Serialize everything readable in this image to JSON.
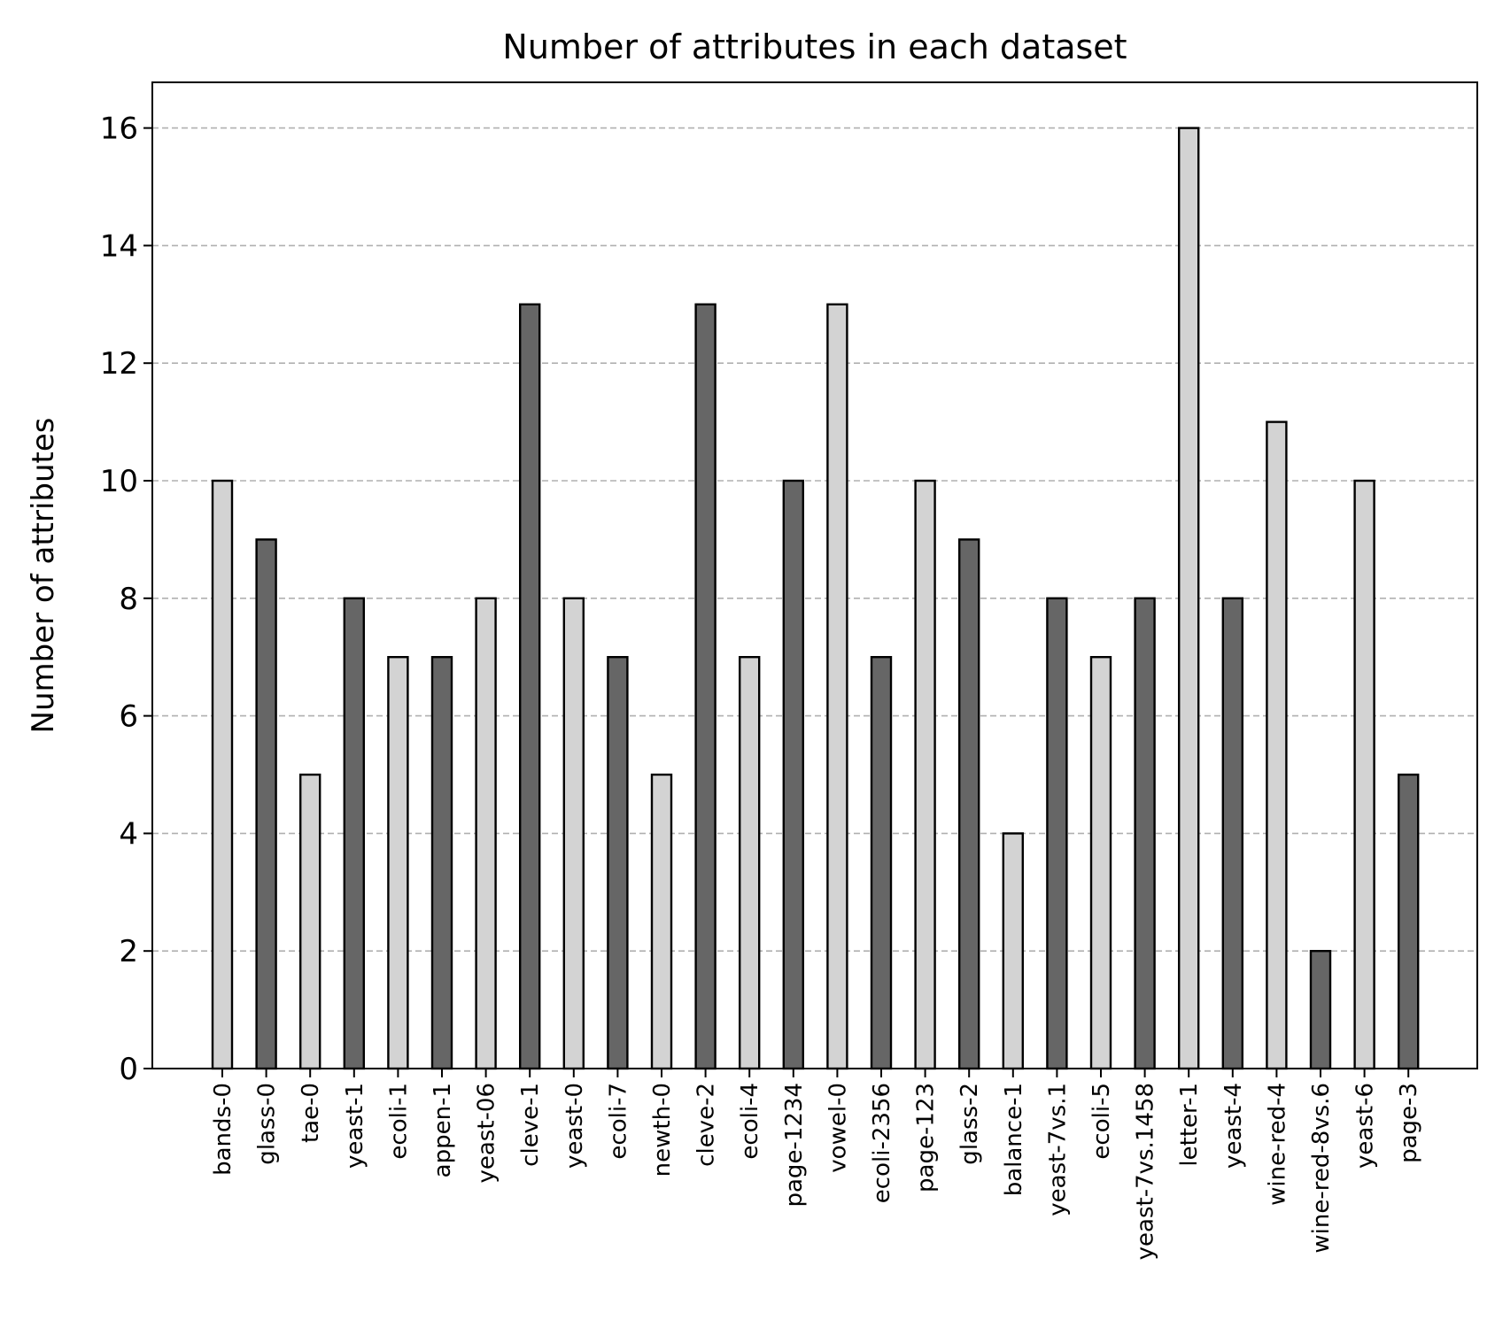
{
  "chart_data": {
    "type": "bar",
    "title": "Number of attributes in each dataset",
    "xlabel": "",
    "ylabel": "Number of attributes",
    "ylim": [
      0,
      16.8
    ],
    "yticks": [
      0,
      2,
      4,
      6,
      8,
      10,
      12,
      14,
      16
    ],
    "grid": "horizontal dashed",
    "categories": [
      "bands-0",
      "glass-0",
      "tae-0",
      "yeast-1",
      "ecoli-1",
      "appen-1",
      "yeast-06",
      "cleve-1",
      "yeast-0",
      "ecoli-7",
      "newth-0",
      "cleve-2",
      "ecoli-4",
      "page-1234",
      "vowel-0",
      "ecoli-2356",
      "page-123",
      "glass-2",
      "balance-1",
      "yeast-7vs.1",
      "ecoli-5",
      "yeast-7vs.1458",
      "letter-1",
      "yeast-4",
      "wine-red-4",
      "wine-red-8vs.6",
      "yeast-6",
      "page-3"
    ],
    "values": [
      10,
      9,
      5,
      8,
      7,
      7,
      8,
      13,
      8,
      7,
      5,
      13,
      7,
      10,
      13,
      7,
      10,
      9,
      4,
      8,
      7,
      8,
      16,
      8,
      11,
      2,
      10,
      5
    ],
    "colors": [
      "#d3d3d3",
      "#666666",
      "#d3d3d3",
      "#666666",
      "#d3d3d3",
      "#666666",
      "#d3d3d3",
      "#666666",
      "#d3d3d3",
      "#666666",
      "#d3d3d3",
      "#666666",
      "#d3d3d3",
      "#666666",
      "#d3d3d3",
      "#666666",
      "#d3d3d3",
      "#666666",
      "#d3d3d3",
      "#666666",
      "#d3d3d3",
      "#666666",
      "#d3d3d3",
      "#666666",
      "#d3d3d3",
      "#666666",
      "#d3d3d3",
      "#666666"
    ],
    "edge_color": "#000000",
    "grid_color": "#b0b0b0"
  }
}
